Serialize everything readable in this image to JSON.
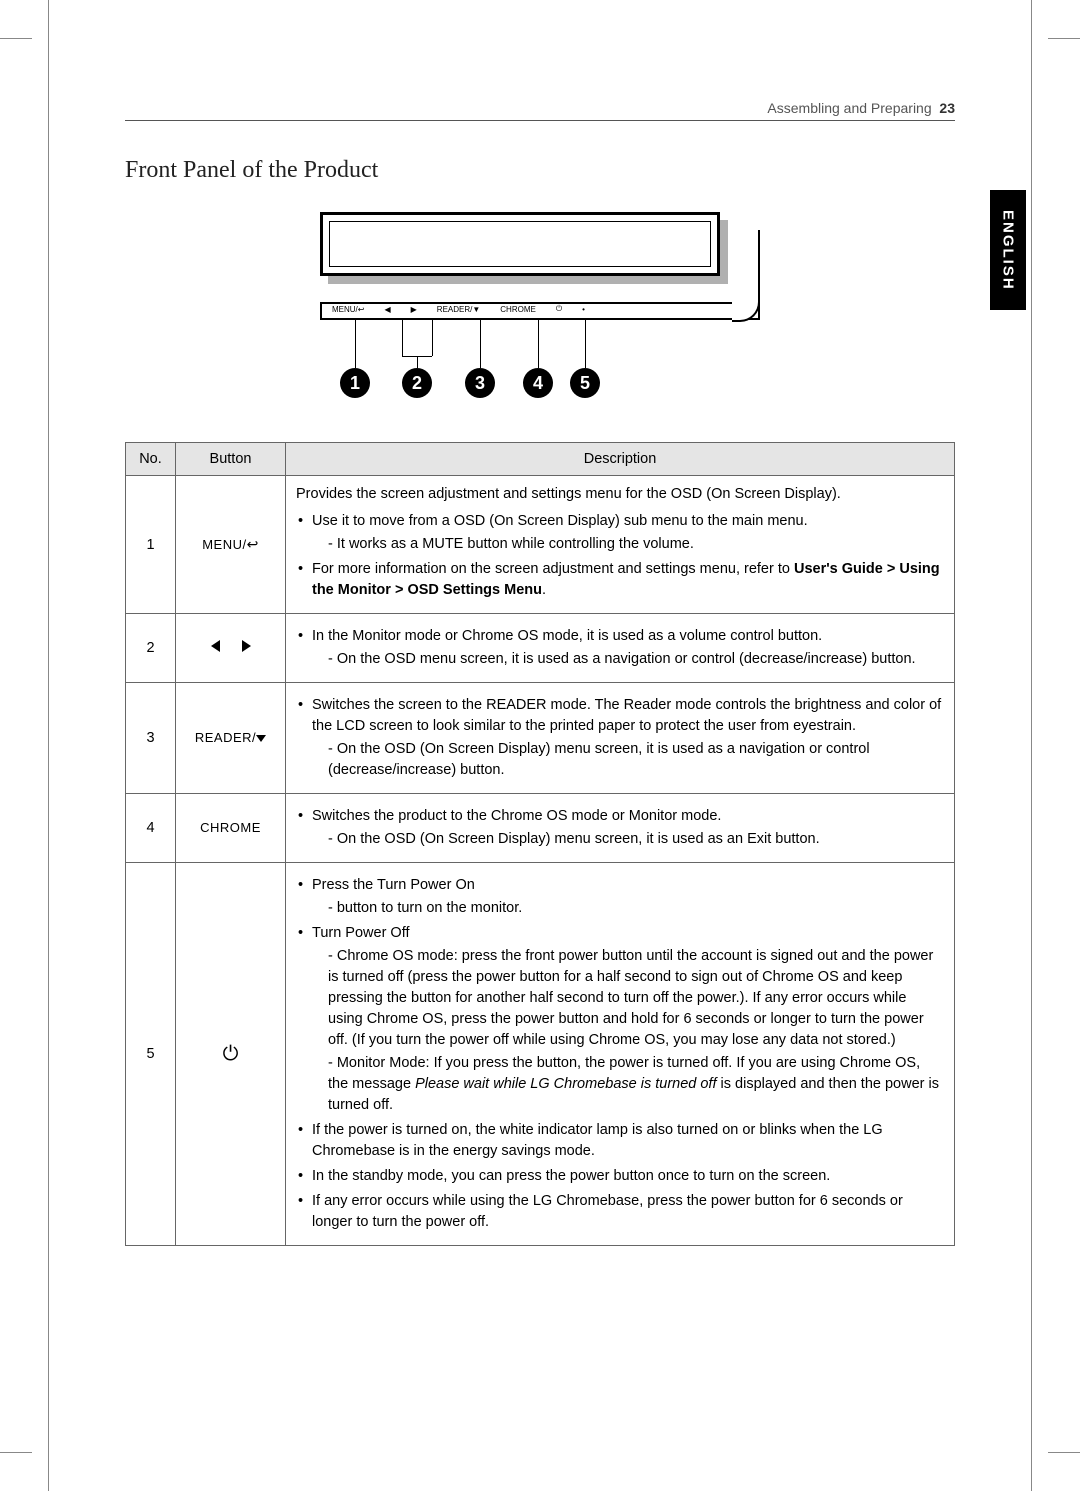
{
  "header": {
    "section": "Assembling and Preparing",
    "page_number": "23"
  },
  "side_tab": "ENGLISH",
  "section_title": "Front Panel of the Product",
  "diagram": {
    "panel_labels": [
      "MENU/↩",
      "◀",
      "▶",
      "READER/▼",
      "CHROME",
      "⏻",
      "•"
    ],
    "callouts": [
      "1",
      "2",
      "3",
      "4",
      "5"
    ]
  },
  "table": {
    "headers": {
      "no": "No.",
      "button": "Button",
      "description": "Description"
    },
    "rows": [
      {
        "no": "1",
        "button": "MENU/↩",
        "lead": "Provides the screen adjustment and settings menu for the OSD (On Screen Display).",
        "bullets": [
          {
            "text": "Use it to move from a OSD (On Screen Display) sub menu to the main menu.",
            "subs": [
              "- It works as a MUTE button while controlling the volume."
            ]
          },
          {
            "text_pre": "For more information on the screen adjustment and settings menu, refer to ",
            "bold": "User's Guide  > Using the Monitor > OSD Settings Menu",
            "text_post": "."
          }
        ]
      },
      {
        "no": "2",
        "button": "◀  ▶",
        "bullets": [
          {
            "text": "In the Monitor mode or Chrome OS mode, it is used as a volume control button.",
            "subs": [
              "- On the OSD menu screen, it is used as a navigation or control (decrease/increase) button."
            ]
          }
        ]
      },
      {
        "no": "3",
        "button": "READER/▼",
        "bullets": [
          {
            "text": "Switches the screen to the READER mode. The Reader mode controls the brightness and color of the LCD screen to look similar to the printed paper to protect the user from eyestrain.",
            "subs": [
              "- On the OSD (On Screen Display) menu screen, it is used as a navigation or control (decrease/increase) button."
            ]
          }
        ]
      },
      {
        "no": "4",
        "button": "CHROME",
        "bullets": [
          {
            "text": "Switches the product to the Chrome OS mode or Monitor mode.",
            "subs": [
              "- On the OSD (On Screen Display) menu screen, it is used as an Exit button."
            ]
          }
        ]
      },
      {
        "no": "5",
        "button": "⏻",
        "bullets": [
          {
            "text": "Press the Turn Power On",
            "subs": [
              "- button to turn on the monitor."
            ]
          },
          {
            "text": "Turn Power Off",
            "subs": [
              "- Chrome OS mode: press the front power button until the account is signed out and the power is turned off (press the power button for a half second to sign out of Chrome OS and keep pressing the button for another half second to turn off the power.).  If any error occurs while using Chrome OS, press the power button and hold for 6 seconds or longer to turn the power off. (If you turn the power off while using Chrome OS, you may lose any data not stored.)",
              {
                "pre": "- Monitor Mode: If you press the button, the power is turned off. If you are using Chrome OS, the message ",
                "italic": "Please wait while LG Chromebase is turned off",
                "post": " is displayed and then the power is turned off."
              }
            ]
          },
          {
            "text": "If the power is turned on, the white indicator lamp is also turned on or blinks when the LG Chromebase is in the energy savings mode."
          },
          {
            "text": "In the standby mode, you can press the power button once to turn on the screen."
          },
          {
            "text": "If any error occurs while using the LG Chromebase, press the power button for 6 seconds or longer to turn the power off."
          }
        ]
      }
    ]
  },
  "colors": {
    "text": "#000000",
    "border": "#666666",
    "header_bg": "#e5e5e5",
    "frame": "#888888",
    "tab_bg": "#000000",
    "tab_fg": "#ffffff"
  },
  "fonts": {
    "body_size_pt": 11,
    "title_size_pt": 18
  }
}
